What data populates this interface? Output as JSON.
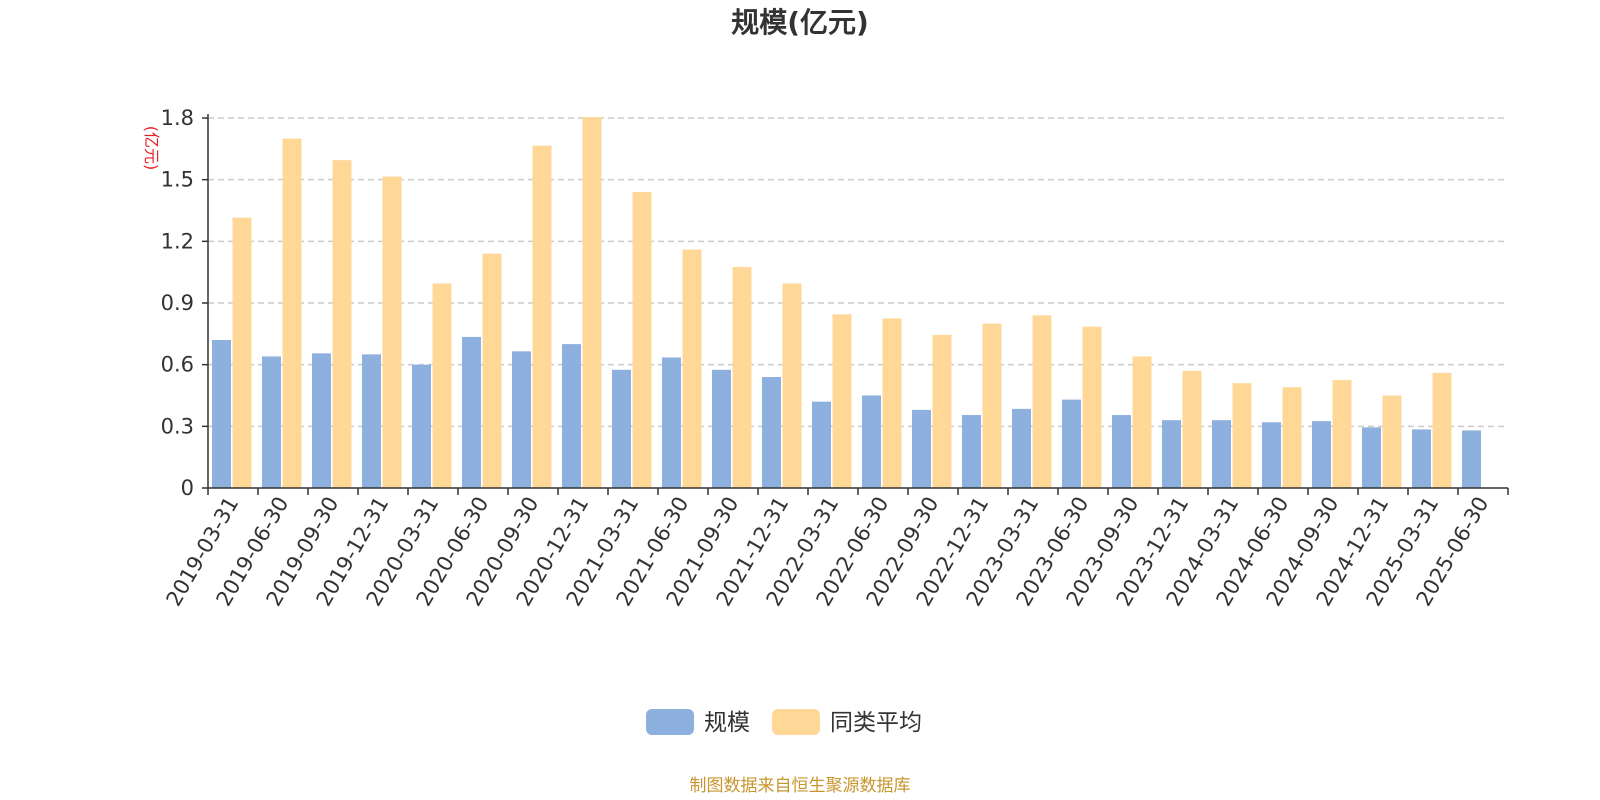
{
  "colors": {
    "series1": "#8eb0de",
    "series2": "#ffd898",
    "grid": "#cccccc",
    "axis": "#333333",
    "unit": "#e6212a",
    "source": "#c8962e"
  },
  "footer": {
    "source": "制图数据来自恒生聚源数据库"
  },
  "chart_data": {
    "type": "bar",
    "title": "规模(亿元)",
    "ylabel": "(亿元)",
    "xlabel": "",
    "ylim": [
      0,
      1.8
    ],
    "yticks": [
      "0",
      "0.3",
      "0.6",
      "0.9",
      "1.2",
      "1.5",
      "1.8"
    ],
    "grid": true,
    "legend_position": "bottom-center",
    "categories": [
      "2019-03-31",
      "2019-06-30",
      "2019-09-30",
      "2019-12-31",
      "2020-03-31",
      "2020-06-30",
      "2020-09-30",
      "2020-12-31",
      "2021-03-31",
      "2021-06-30",
      "2021-09-30",
      "2021-12-31",
      "2022-03-31",
      "2022-06-30",
      "2022-09-30",
      "2022-12-31",
      "2023-03-31",
      "2023-06-30",
      "2023-09-30",
      "2023-12-31",
      "2024-03-31",
      "2024-06-30",
      "2024-09-30",
      "2024-12-31",
      "2025-03-31",
      "2025-06-30"
    ],
    "series": [
      {
        "name": "规模",
        "values": [
          0.72,
          0.64,
          0.655,
          0.65,
          0.6,
          0.735,
          0.665,
          0.7,
          0.575,
          0.635,
          0.575,
          0.54,
          0.42,
          0.45,
          0.38,
          0.355,
          0.385,
          0.43,
          0.355,
          0.33,
          0.33,
          0.32,
          0.325,
          0.295,
          0.285,
          0.28
        ]
      },
      {
        "name": "同类平均",
        "values": [
          1.315,
          1.7,
          1.595,
          1.515,
          0.995,
          1.14,
          1.665,
          1.805,
          1.44,
          1.16,
          1.075,
          0.995,
          0.845,
          0.825,
          0.745,
          0.8,
          0.84,
          0.785,
          0.64,
          0.57,
          0.51,
          0.49,
          0.525,
          0.45,
          0.56,
          null
        ]
      }
    ]
  }
}
